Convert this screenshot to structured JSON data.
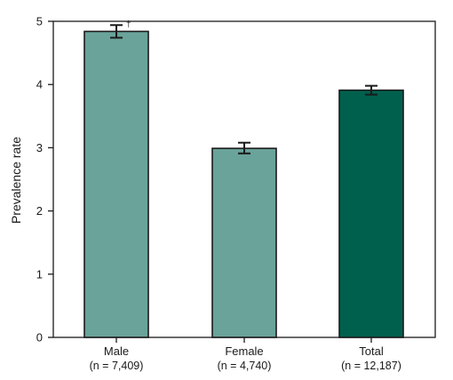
{
  "chart_data": {
    "type": "bar",
    "categories": [
      "Male",
      "Female",
      "Total"
    ],
    "category_sublabels": [
      "(n = 7,409)",
      "(n = 4,740)",
      "(n = 12,187)"
    ],
    "values": [
      4.84,
      2.99,
      3.91
    ],
    "error_bars": [
      {
        "low": 4.74,
        "high": 4.94
      },
      {
        "low": 2.91,
        "high": 3.08
      },
      {
        "low": 3.84,
        "high": 3.98
      }
    ],
    "colors": [
      "#6aa39a",
      "#6aa39a",
      "#00604e"
    ],
    "annotations": [
      {
        "category": "Male",
        "text": "†"
      }
    ],
    "title": "",
    "xlabel": "",
    "ylabel": "Prevalence rate",
    "ylim": [
      0,
      5
    ],
    "yticks": [
      "0",
      "1",
      "2",
      "3",
      "4",
      "5"
    ],
    "grid": false,
    "legend": "none"
  }
}
